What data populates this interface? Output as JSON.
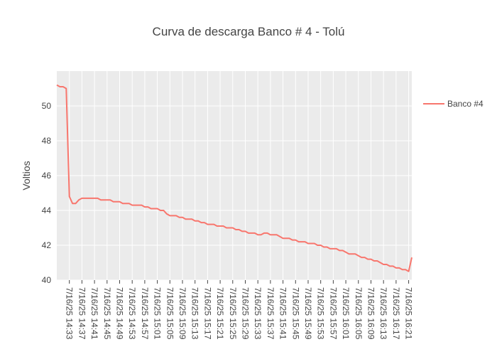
{
  "chart_data": {
    "type": "line",
    "title": "Curva de descarga Banco # 4 - Tolú",
    "xlabel": "",
    "ylabel": "Voltios",
    "ylim": [
      40,
      52
    ],
    "y_ticks": [
      40,
      42,
      44,
      46,
      48,
      50
    ],
    "x_tick_labels": [
      "7/16/25 14:33",
      "7/16/25 14:37",
      "7/16/25 14:41",
      "7/16/25 14:45",
      "7/16/25 14:49",
      "7/16/25 14:53",
      "7/16/25 14:57",
      "7/16/25 15:01",
      "7/16/25 15:05",
      "7/16/25 15:09",
      "7/16/25 15:13",
      "7/16/25 15:17",
      "7/16/25 15:21",
      "7/16/25 15:25",
      "7/16/25 15:29",
      "7/16/25 15:33",
      "7/16/25 15:37",
      "7/16/25 15:41",
      "7/16/25 15:45",
      "7/16/25 15:49",
      "7/16/25 15:53",
      "7/16/25 15:57",
      "7/16/25 16:01",
      "7/16/25 16:05",
      "7/16/25 16:09",
      "7/16/25 16:13",
      "7/16/25 16:17",
      "7/16/25 16:21"
    ],
    "grid": true,
    "legend_position": "right",
    "background_color": "#ebebeb",
    "series": [
      {
        "name": "Banco #4",
        "color": "#f8766d",
        "start_time": "7/16/25 14:29",
        "end_time": "7/16/25 16:22",
        "values": [
          51.2,
          51.1,
          51.1,
          51.0,
          44.8,
          44.4,
          44.4,
          44.6,
          44.7,
          44.7,
          44.7,
          44.7,
          44.7,
          44.7,
          44.6,
          44.6,
          44.6,
          44.6,
          44.5,
          44.5,
          44.5,
          44.4,
          44.4,
          44.4,
          44.3,
          44.3,
          44.3,
          44.3,
          44.2,
          44.2,
          44.1,
          44.1,
          44.1,
          44.0,
          44.0,
          43.8,
          43.7,
          43.7,
          43.7,
          43.6,
          43.6,
          43.5,
          43.5,
          43.5,
          43.4,
          43.4,
          43.3,
          43.3,
          43.2,
          43.2,
          43.2,
          43.1,
          43.1,
          43.1,
          43.0,
          43.0,
          43.0,
          42.9,
          42.9,
          42.8,
          42.8,
          42.7,
          42.7,
          42.7,
          42.6,
          42.6,
          42.7,
          42.7,
          42.6,
          42.6,
          42.6,
          42.5,
          42.4,
          42.4,
          42.4,
          42.3,
          42.3,
          42.2,
          42.2,
          42.2,
          42.1,
          42.1,
          42.1,
          42.0,
          42.0,
          41.9,
          41.9,
          41.8,
          41.8,
          41.8,
          41.7,
          41.7,
          41.6,
          41.5,
          41.5,
          41.5,
          41.4,
          41.3,
          41.3,
          41.2,
          41.2,
          41.1,
          41.1,
          41.0,
          40.9,
          40.9,
          40.8,
          40.8,
          40.7,
          40.7,
          40.6,
          40.6,
          40.5,
          41.3
        ]
      }
    ]
  }
}
